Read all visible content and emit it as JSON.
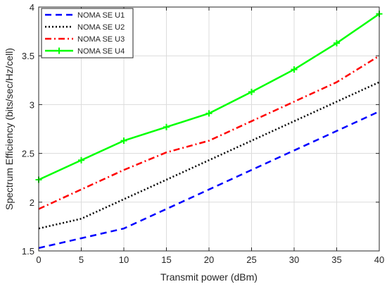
{
  "chart_data": {
    "type": "line",
    "title": "",
    "xlabel": "Transmit power (dBm)",
    "ylabel": "Spectrum Efficiency (bits/sec/Hz/cell)",
    "xlim": [
      0,
      40
    ],
    "ylim": [
      1.5,
      4
    ],
    "x_ticks": [
      0,
      5,
      10,
      15,
      20,
      25,
      30,
      35,
      40
    ],
    "y_ticks": [
      1.5,
      2,
      2.5,
      3,
      3.5,
      4
    ],
    "x_tick_labels": [
      "0",
      "5",
      "10",
      "15",
      "20",
      "25",
      "30",
      "35",
      "40"
    ],
    "y_tick_labels": [
      "1.5",
      "2",
      "2.5",
      "3",
      "3.5",
      "4"
    ],
    "grid": true,
    "legend_position": "top-left",
    "x": [
      0,
      5,
      10,
      15,
      20,
      25,
      30,
      35,
      40
    ],
    "series": [
      {
        "name": "NOMA SE U1",
        "values": [
          1.53,
          1.63,
          1.73,
          1.93,
          2.13,
          2.33,
          2.53,
          2.73,
          2.93
        ],
        "color": "#0000ff",
        "line_style": "dashed",
        "marker": "none"
      },
      {
        "name": "NOMA SE U2",
        "values": [
          1.73,
          1.83,
          2.03,
          2.23,
          2.43,
          2.63,
          2.83,
          3.03,
          3.23
        ],
        "color": "#000000",
        "line_style": "dotted",
        "marker": "none"
      },
      {
        "name": "NOMA SE U3",
        "values": [
          1.93,
          2.13,
          2.33,
          2.51,
          2.63,
          2.83,
          3.03,
          3.23,
          3.5
        ],
        "color": "#ff0000",
        "line_style": "dash-dot",
        "marker": "none"
      },
      {
        "name": "NOMA SE U4",
        "values": [
          2.23,
          2.43,
          2.63,
          2.77,
          2.91,
          3.13,
          3.36,
          3.63,
          3.93
        ],
        "color": "#00ff00",
        "line_style": "solid",
        "marker": "plus"
      }
    ]
  }
}
